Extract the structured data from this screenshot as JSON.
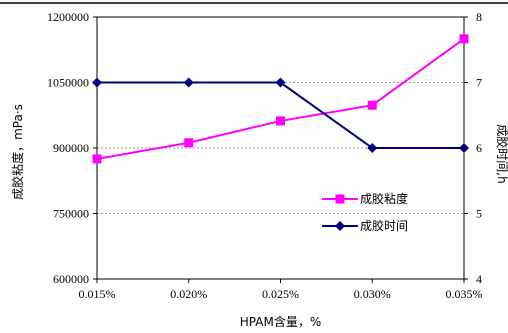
{
  "chart_data": {
    "type": "line",
    "title": "",
    "xlabel": "HPAM含量，%",
    "ylabel_left": "成胶粘度，mPa·s",
    "ylabel_right": "成胶时间,h",
    "categories": [
      "0.015%",
      "0.020%",
      "0.025%",
      "0.030%",
      "0.035%"
    ],
    "y_left": {
      "min": 600000,
      "max": 1200000,
      "ticks": [
        600000,
        750000,
        900000,
        1050000,
        1200000
      ]
    },
    "y_right": {
      "min": 4,
      "max": 8,
      "ticks": [
        4,
        5,
        6,
        7,
        8
      ]
    },
    "grid": "horizontal",
    "legend_position": "lower-right",
    "series": [
      {
        "name": "成胶粘度",
        "axis": "left",
        "color": "#ff00ff",
        "marker": "square",
        "values": [
          875000,
          912000,
          962000,
          998000,
          1150000
        ]
      },
      {
        "name": "成胶时间",
        "axis": "right",
        "color": "#00007f",
        "marker": "diamond",
        "values": [
          7,
          7,
          7,
          6,
          6
        ]
      }
    ]
  }
}
